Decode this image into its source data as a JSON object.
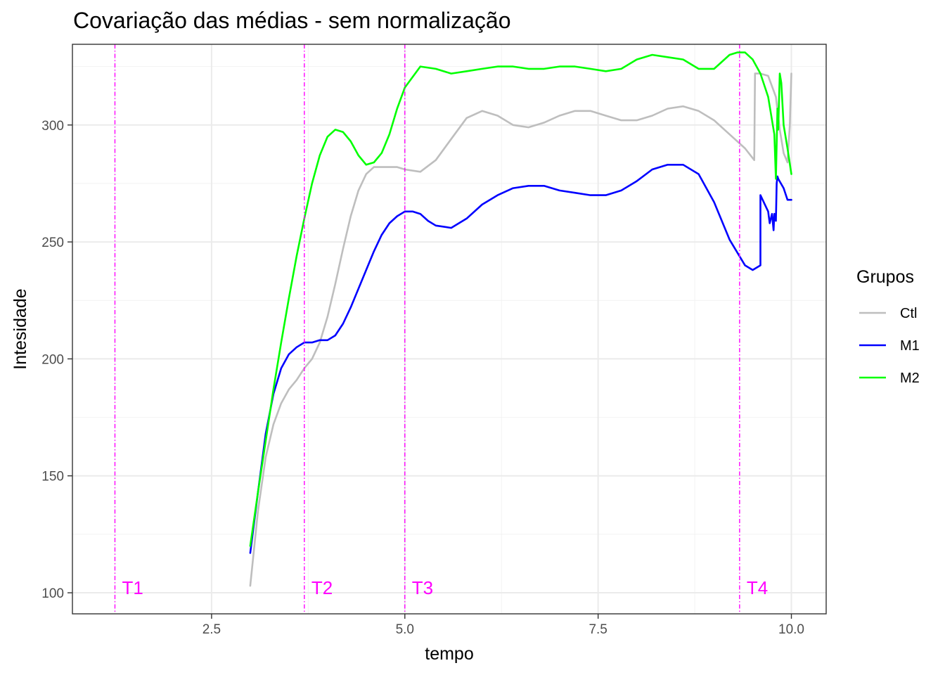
{
  "chart_data": {
    "type": "line",
    "title": "Covariação das médias - sem normalização",
    "xlabel": "tempo",
    "ylabel": "Intesidade",
    "xlim": [
      0.7,
      10.45
    ],
    "ylim": [
      91,
      334.5
    ],
    "x_ticks": [
      2.5,
      5.0,
      7.5,
      10.0
    ],
    "x_tick_labels": [
      "2.5",
      "5.0",
      "7.5",
      "10.0"
    ],
    "y_ticks": [
      100,
      150,
      200,
      250,
      300
    ],
    "y_tick_labels": [
      "100",
      "150",
      "200",
      "250",
      "300"
    ],
    "grid": true,
    "legend": {
      "title": "Grupos",
      "position": "right"
    },
    "vlines": [
      {
        "label": "T1",
        "x": 1.25,
        "color": "#ff00ff"
      },
      {
        "label": "T2",
        "x": 3.7,
        "color": "#ff00ff"
      },
      {
        "label": "T3",
        "x": 5.0,
        "color": "#ff00ff"
      },
      {
        "label": "T4",
        "x": 9.33,
        "color": "#ff00ff"
      }
    ],
    "series": [
      {
        "name": "Ctl",
        "color": "#bebebe",
        "x": [
          3.0,
          3.1,
          3.2,
          3.3,
          3.4,
          3.5,
          3.6,
          3.7,
          3.8,
          3.9,
          4.0,
          4.1,
          4.2,
          4.3,
          4.4,
          4.5,
          4.6,
          4.7,
          4.8,
          4.9,
          5.0,
          5.2,
          5.4,
          5.6,
          5.8,
          6.0,
          6.2,
          6.4,
          6.6,
          6.8,
          7.0,
          7.2,
          7.4,
          7.6,
          7.8,
          8.0,
          8.2,
          8.4,
          8.6,
          8.8,
          9.0,
          9.2,
          9.4,
          9.52,
          9.53,
          9.6,
          9.7,
          9.8,
          9.85,
          9.9,
          9.95,
          9.98,
          10.0
        ],
        "values": [
          103,
          135,
          158,
          172,
          181,
          187,
          191,
          196,
          200,
          207,
          218,
          232,
          247,
          261,
          272,
          279,
          282,
          282,
          282,
          282,
          281,
          280,
          285,
          294,
          303,
          306,
          304,
          300,
          299,
          301,
          304,
          306,
          306,
          304,
          302,
          302,
          304,
          307,
          308,
          306,
          302,
          296,
          290,
          285,
          322,
          322,
          321,
          312,
          298,
          288,
          284,
          300,
          322
        ]
      },
      {
        "name": "M1",
        "color": "#0000ff",
        "x": [
          3.0,
          3.1,
          3.2,
          3.3,
          3.4,
          3.5,
          3.6,
          3.7,
          3.8,
          3.9,
          4.0,
          4.1,
          4.2,
          4.3,
          4.4,
          4.5,
          4.6,
          4.7,
          4.8,
          4.9,
          5.0,
          5.1,
          5.2,
          5.3,
          5.4,
          5.6,
          5.8,
          6.0,
          6.2,
          6.4,
          6.6,
          6.8,
          7.0,
          7.2,
          7.4,
          7.6,
          7.8,
          8.0,
          8.2,
          8.4,
          8.6,
          8.8,
          9.0,
          9.2,
          9.4,
          9.5,
          9.6,
          9.6,
          9.7,
          9.72,
          9.75,
          9.77,
          9.78,
          9.8,
          9.81,
          9.82,
          9.83,
          9.9,
          9.95,
          10.0
        ],
        "values": [
          117,
          143,
          168,
          185,
          196,
          202,
          205,
          207,
          207,
          208,
          208,
          210,
          215,
          222,
          230,
          238,
          246,
          253,
          258,
          261,
          263,
          263,
          262,
          259,
          257,
          256,
          260,
          266,
          270,
          273,
          274,
          274,
          272,
          271,
          270,
          270,
          272,
          276,
          281,
          283,
          283,
          279,
          267,
          251,
          240,
          238,
          240,
          270,
          263,
          258,
          262,
          255,
          262,
          259,
          275,
          278,
          277,
          273,
          268,
          268
        ]
      },
      {
        "name": "M2",
        "color": "#00ff00",
        "x": [
          3.0,
          3.1,
          3.2,
          3.3,
          3.4,
          3.5,
          3.6,
          3.7,
          3.8,
          3.9,
          4.0,
          4.1,
          4.2,
          4.3,
          4.4,
          4.5,
          4.6,
          4.7,
          4.8,
          4.9,
          5.0,
          5.2,
          5.4,
          5.6,
          5.8,
          6.0,
          6.2,
          6.4,
          6.6,
          6.8,
          7.0,
          7.2,
          7.4,
          7.6,
          7.8,
          8.0,
          8.2,
          8.4,
          8.6,
          8.8,
          9.0,
          9.2,
          9.3,
          9.4,
          9.5,
          9.6,
          9.7,
          9.78,
          9.8,
          9.82,
          9.83,
          9.85,
          9.87,
          9.9,
          9.95,
          10.0
        ],
        "values": [
          120,
          143,
          165,
          187,
          207,
          226,
          244,
          260,
          275,
          287,
          295,
          298,
          297,
          293,
          287,
          283,
          284,
          288,
          296,
          307,
          316,
          325,
          324,
          322,
          323,
          324,
          325,
          325,
          324,
          324,
          325,
          325,
          324,
          323,
          324,
          328,
          330,
          329,
          328,
          324,
          324,
          330,
          331,
          331,
          328,
          322,
          312,
          296,
          277,
          307,
          298,
          322,
          318,
          300,
          290,
          279
        ]
      }
    ]
  }
}
